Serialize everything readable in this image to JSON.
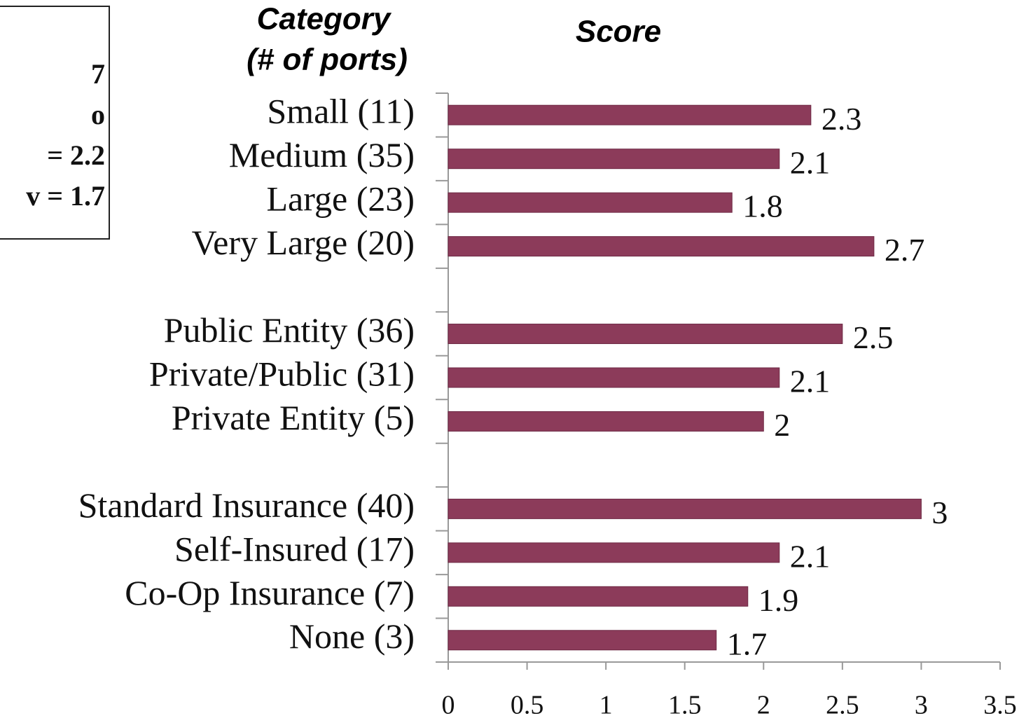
{
  "chart_data": {
    "type": "bar",
    "orientation": "horizontal",
    "category_axis_title": [
      "Category",
      "(# of ports)"
    ],
    "value_axis_title": "Score",
    "categories": [
      "Small (11)",
      "Medium (35)",
      "Large (23)",
      "Very Large (20)",
      null,
      "Public Entity (36)",
      "Private/Public (31)",
      "Private Entity (5)",
      null,
      "Standard Insurance (40)",
      "Self-Insured (17)",
      "Co-Op Insurance (7)",
      "None (3)"
    ],
    "values": [
      2.3,
      2.1,
      1.8,
      2.7,
      null,
      2.5,
      2.1,
      2,
      null,
      3,
      2.1,
      1.9,
      1.7
    ],
    "color": "#8c3b5a",
    "xlim": [
      0,
      3.5
    ],
    "xticks": [
      0,
      0.5,
      1,
      1.5,
      2,
      2.5,
      3,
      3.5
    ],
    "annotation_box": [
      "7",
      "o",
      "= 2.2",
      "v = 1.7"
    ]
  }
}
